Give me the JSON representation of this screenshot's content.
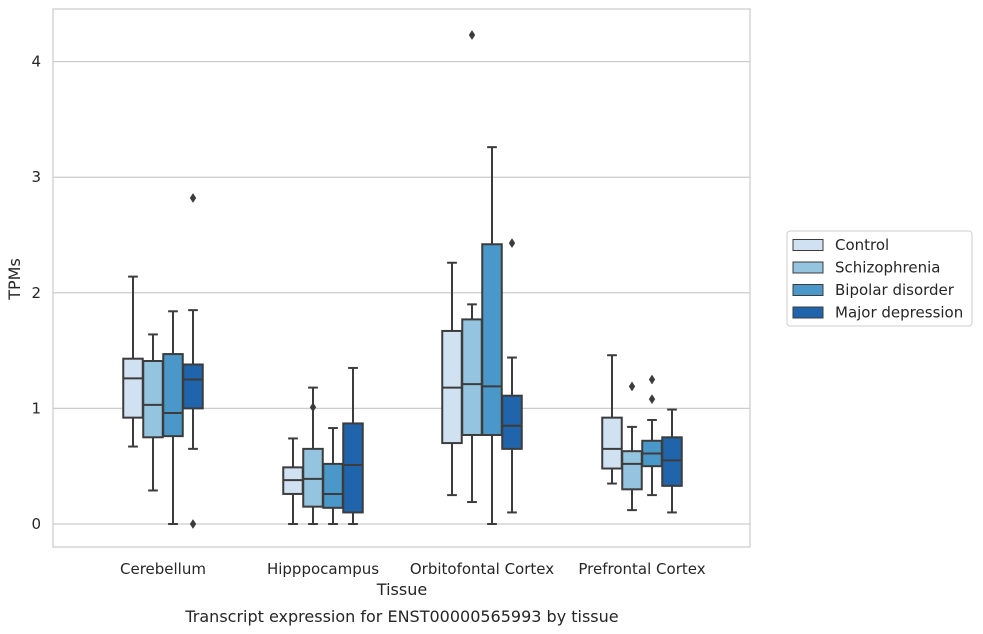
{
  "chart_data": {
    "type": "box",
    "xlabel": "Tissue",
    "ylabel": "TPMs",
    "caption": "Transcript expression for ENST00000565993 by tissue",
    "ylim": [
      -0.2,
      4.45
    ],
    "yticks": [
      0,
      1,
      2,
      3,
      4
    ],
    "grid": "horizontal",
    "legend_position": "right",
    "categories": [
      "Cerebellum",
      "Hipppocampus",
      "Orbitofontal Cortex",
      "Prefrontal Cortex"
    ],
    "series": [
      {
        "name": "Control",
        "color": "#d0e1f2",
        "boxes": [
          {
            "whislo": 0.67,
            "q1": 0.92,
            "med": 1.26,
            "q3": 1.43,
            "whishi": 2.14,
            "fliers": []
          },
          {
            "whislo": 0.0,
            "q1": 0.26,
            "med": 0.38,
            "q3": 0.49,
            "whishi": 0.74,
            "fliers": []
          },
          {
            "whislo": 0.25,
            "q1": 0.7,
            "med": 1.18,
            "q3": 1.67,
            "whishi": 2.26,
            "fliers": []
          },
          {
            "whislo": 0.35,
            "q1": 0.48,
            "med": 0.65,
            "q3": 0.92,
            "whishi": 1.46,
            "fliers": []
          }
        ]
      },
      {
        "name": "Schizophrenia",
        "color": "#94c4df",
        "boxes": [
          {
            "whislo": 0.29,
            "q1": 0.75,
            "med": 1.03,
            "q3": 1.41,
            "whishi": 1.64,
            "fliers": []
          },
          {
            "whislo": 0.0,
            "q1": 0.15,
            "med": 0.39,
            "q3": 0.65,
            "whishi": 1.18,
            "fliers": [
              1.01
            ]
          },
          {
            "whislo": 0.19,
            "q1": 0.77,
            "med": 1.21,
            "q3": 1.77,
            "whishi": 1.9,
            "fliers": [
              4.23
            ]
          },
          {
            "whislo": 0.12,
            "q1": 0.3,
            "med": 0.52,
            "q3": 0.63,
            "whishi": 0.84,
            "fliers": [
              1.19
            ]
          }
        ]
      },
      {
        "name": "Bipolar disorder",
        "color": "#4a98c9",
        "boxes": [
          {
            "whislo": 0.0,
            "q1": 0.76,
            "med": 0.96,
            "q3": 1.47,
            "whishi": 1.84,
            "fliers": []
          },
          {
            "whislo": 0.0,
            "q1": 0.14,
            "med": 0.26,
            "q3": 0.52,
            "whishi": 0.83,
            "fliers": []
          },
          {
            "whislo": 0.0,
            "q1": 0.77,
            "med": 1.19,
            "q3": 2.42,
            "whishi": 3.26,
            "fliers": []
          },
          {
            "whislo": 0.25,
            "q1": 0.5,
            "med": 0.61,
            "q3": 0.72,
            "whishi": 0.9,
            "fliers": [
              1.08,
              1.25
            ]
          }
        ]
      },
      {
        "name": "Major depression",
        "color": "#2064ab",
        "boxes": [
          {
            "whislo": 0.65,
            "q1": 1.0,
            "med": 1.25,
            "q3": 1.38,
            "whishi": 1.85,
            "fliers": [
              0.0,
              2.82
            ]
          },
          {
            "whislo": 0.0,
            "q1": 0.1,
            "med": 0.51,
            "q3": 0.87,
            "whishi": 1.35,
            "fliers": []
          },
          {
            "whislo": 0.1,
            "q1": 0.65,
            "med": 0.85,
            "q3": 1.11,
            "whishi": 1.44,
            "fliers": [
              2.43
            ]
          },
          {
            "whislo": 0.1,
            "q1": 0.33,
            "med": 0.55,
            "q3": 0.75,
            "whishi": 0.99,
            "fliers": []
          }
        ]
      }
    ]
  }
}
